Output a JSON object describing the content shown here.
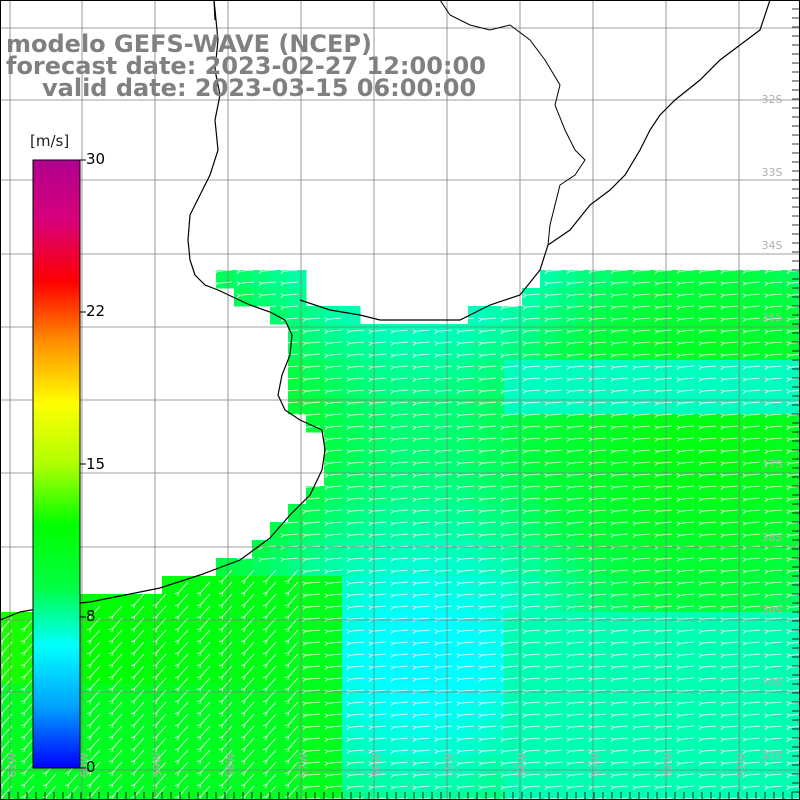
{
  "title": {
    "model": "modelo GEFS-WAVE (NCEP)",
    "forecast_date": "forecast date: 2023-02-27 12:00:00",
    "valid_date": "valid date: 2023-03-15 06:00:00"
  },
  "colorbar": {
    "unit": "[m/s]",
    "ticks": [
      "30",
      "22",
      "15",
      "8",
      "0"
    ],
    "range": [
      0,
      30
    ],
    "colors": [
      "#0000ff",
      "#00a0ff",
      "#00ffff",
      "#00ff40",
      "#00ff00",
      "#b0ff00",
      "#ffff00",
      "#ff9000",
      "#ff0000",
      "#d8007a",
      "#b00090"
    ]
  },
  "latitude_labels": [
    "32S",
    "33S",
    "34S",
    "35S",
    "37S",
    "38S",
    "39S",
    "40S",
    "41S"
  ],
  "longitude_labels": [
    "61W",
    "60W",
    "59W",
    "58W",
    "57W",
    "56W",
    "55W",
    "54W",
    "53W",
    "52W",
    "51W"
  ],
  "field": {
    "variable": "wind speed",
    "typical_wind_direction": "from east / southeast",
    "speed_range_shown": [
      6,
      13
    ]
  },
  "colors": {
    "land": "#ffffff",
    "coastline": "#000000",
    "grid": "#808080",
    "arrows": "#ffffff",
    "title_text": "#808080"
  }
}
